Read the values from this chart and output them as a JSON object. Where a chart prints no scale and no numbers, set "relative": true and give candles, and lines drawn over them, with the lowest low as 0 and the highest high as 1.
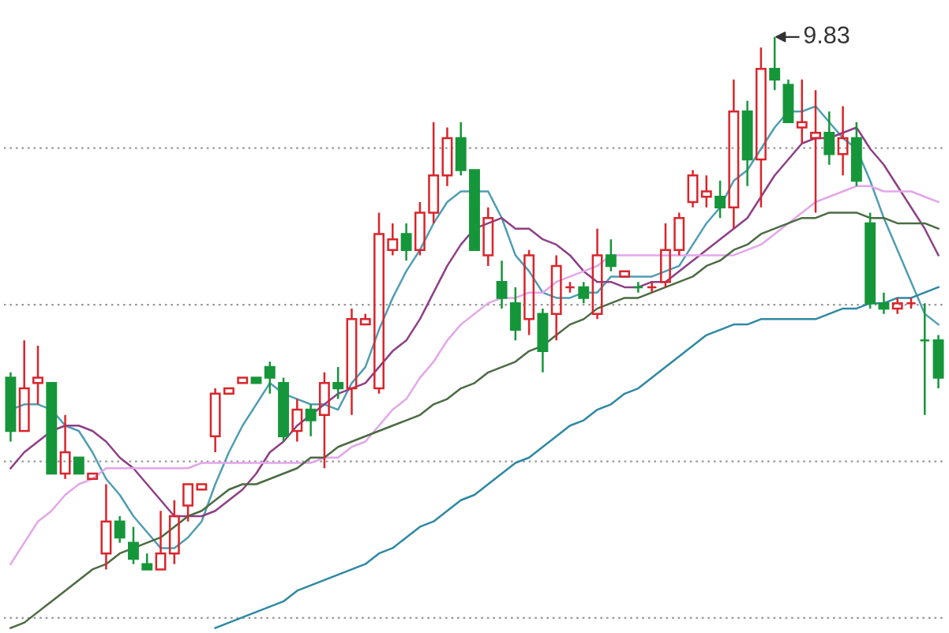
{
  "chart_data": {
    "type": "candlestick",
    "relative": true,
    "grid": "y",
    "categories": [
      null,
      null,
      null,
      null,
      null,
      null,
      null,
      null,
      null,
      null,
      null,
      null,
      null,
      null,
      null,
      null,
      null,
      null,
      null,
      null,
      null,
      null,
      null,
      null,
      null,
      null,
      null,
      null,
      null,
      null,
      null,
      null,
      null,
      null,
      null,
      null,
      null,
      null,
      null,
      null,
      null,
      null,
      null,
      null,
      null,
      null,
      null,
      null,
      null,
      null,
      null,
      null,
      null,
      null,
      null,
      null,
      null,
      null,
      null,
      null,
      null,
      null,
      null,
      null,
      null,
      null,
      null,
      null,
      null
    ],
    "ohlc": [
      [
        0.36,
        0.37,
        0.24,
        0.26
      ],
      [
        0.26,
        0.43,
        0.26,
        0.34
      ],
      [
        0.35,
        0.42,
        0.31,
        0.36
      ],
      [
        0.35,
        0.35,
        0.18,
        0.18
      ],
      [
        0.18,
        0.29,
        0.17,
        0.22
      ],
      [
        0.21,
        0.21,
        0.18,
        0.18
      ],
      [
        0.17,
        0.18,
        0.17,
        0.18
      ],
      [
        0.03,
        0.16,
        0,
        0.09
      ],
      [
        0.09,
        0.1,
        0.05,
        0.06
      ],
      [
        0.05,
        0.08,
        0.01,
        0.02
      ],
      [
        0.01,
        0.03,
        0,
        0
      ],
      [
        0,
        0.11,
        0,
        0.03
      ],
      [
        0.03,
        0.13,
        0.01,
        0.1
      ],
      [
        0.12,
        0.16,
        0.09,
        0.16
      ],
      [
        0.15,
        0.16,
        0.15,
        0.16
      ],
      [
        0.25,
        0.34,
        0.22,
        0.33
      ],
      [
        0.33,
        0.34,
        0.33,
        0.34
      ],
      [
        0.35,
        0.36,
        0.35,
        0.36
      ],
      [
        0.36,
        0.36,
        0.35,
        0.35
      ],
      [
        0.38,
        0.39,
        0.33,
        0.36
      ],
      [
        0.35,
        0.36,
        0.24,
        0.25
      ],
      [
        0.26,
        0.32,
        0.24,
        0.3
      ],
      [
        0.3,
        0.31,
        0.25,
        0.28
      ],
      [
        0.29,
        0.37,
        0.19,
        0.35
      ],
      [
        0.35,
        0.38,
        0.32,
        0.34
      ],
      [
        0.34,
        0.49,
        0.29,
        0.47
      ],
      [
        0.46,
        0.48,
        0.46,
        0.47
      ],
      [
        0.34,
        0.67,
        0.33,
        0.63
      ],
      [
        0.6,
        0.65,
        0.59,
        0.62
      ],
      [
        0.63,
        0.65,
        0.58,
        0.6
      ],
      [
        0.6,
        0.69,
        0.59,
        0.67
      ],
      [
        0.67,
        0.84,
        0.65,
        0.74
      ],
      [
        0.74,
        0.83,
        0.72,
        0.81
      ],
      [
        0.81,
        0.84,
        0.74,
        0.75
      ],
      [
        0.75,
        0.75,
        0.6,
        0.6
      ],
      [
        0.59,
        0.68,
        0.57,
        0.66
      ],
      [
        0.54,
        0.58,
        0.49,
        0.51
      ],
      [
        0.5,
        0.53,
        0.43,
        0.45
      ],
      [
        0.47,
        0.6,
        0.44,
        0.59
      ],
      [
        0.48,
        0.49,
        0.37,
        0.41
      ],
      [
        0.48,
        0.59,
        0.43,
        0.57
      ],
      [
        0.53,
        0.54,
        0.52,
        0.53
      ],
      [
        0.53,
        0.54,
        0.5,
        0.51
      ],
      [
        0.48,
        0.64,
        0.47,
        0.59
      ],
      [
        0.59,
        0.62,
        0.56,
        0.57
      ],
      [
        0.55,
        0.56,
        0.55,
        0.56
      ],
      [
        0.53,
        0.54,
        0.52,
        0.53
      ],
      [
        0.53,
        0.54,
        0.52,
        0.53
      ],
      [
        0.54,
        0.65,
        0.53,
        0.6
      ],
      [
        0.6,
        0.67,
        0.59,
        0.66
      ],
      [
        0.69,
        0.75,
        0.68,
        0.74
      ],
      [
        0.7,
        0.74,
        0.68,
        0.71
      ],
      [
        0.7,
        0.73,
        0.66,
        0.68
      ],
      [
        0.68,
        0.92,
        0.64,
        0.86
      ],
      [
        0.86,
        0.88,
        0.72,
        0.77
      ],
      [
        0.77,
        0.98,
        0.68,
        0.94
      ],
      [
        0.94,
        1,
        0.9,
        0.92
      ],
      [
        0.91,
        0.92,
        0.84,
        0.84
      ],
      [
        0.83,
        0.92,
        0.8,
        0.84
      ],
      [
        0.81,
        0.9,
        0.67,
        0.82
      ],
      [
        0.82,
        0.86,
        0.76,
        0.78
      ],
      [
        0.78,
        0.87,
        0.74,
        0.81
      ],
      [
        0.81,
        0.84,
        0.72,
        0.73
      ],
      [
        0.65,
        0.67,
        0.49,
        0.5
      ],
      [
        0.5,
        0.52,
        0.48,
        0.49
      ],
      [
        0.49,
        0.51,
        0.48,
        0.5
      ],
      [
        0.5,
        0.51,
        0.49,
        0.5
      ],
      [
        0.43,
        0.5,
        0.29,
        0.43
      ],
      [
        0.43,
        0.44,
        0.34,
        0.36
      ]
    ],
    "colors": [
      "#16963a",
      "#d9252b",
      "#d9252b",
      "#16963a",
      "#d9252b",
      "#16963a",
      "#d9252b",
      "#d9252b",
      "#16963a",
      "#16963a",
      "#16963a",
      "#d9252b",
      "#d9252b",
      "#d9252b",
      "#d9252b",
      "#d9252b",
      "#d9252b",
      "#d9252b",
      "#16963a",
      "#16963a",
      "#16963a",
      "#d9252b",
      "#16963a",
      "#d9252b",
      "#16963a",
      "#d9252b",
      "#d9252b",
      "#d9252b",
      "#d9252b",
      "#16963a",
      "#d9252b",
      "#d9252b",
      "#d9252b",
      "#16963a",
      "#16963a",
      "#d9252b",
      "#16963a",
      "#16963a",
      "#d9252b",
      "#16963a",
      "#d9252b",
      "#d9252b",
      "#16963a",
      "#d9252b",
      "#16963a",
      "#d9252b",
      "#16963a",
      "#d9252b",
      "#d9252b",
      "#d9252b",
      "#d9252b",
      "#d9252b",
      "#16963a",
      "#d9252b",
      "#16963a",
      "#d9252b",
      "#16963a",
      "#16963a",
      "#d9252b",
      "#d9252b",
      "#16963a",
      "#d9252b",
      "#16963a",
      "#16963a",
      "#16963a",
      "#d9252b",
      "#d9252b",
      "#16963a",
      "#16963a"
    ],
    "series": [
      {
        "type": "line",
        "color": "#4f9db3",
        "values": [
          0.3,
          0.31,
          0.31,
          0.3,
          0.27,
          0.26,
          0.22,
          0.17,
          0.14,
          0.1,
          0.07,
          0.04,
          0.04,
          0.06,
          0.09,
          0.16,
          0.22,
          0.27,
          0.31,
          0.35,
          0.33,
          0.32,
          0.31,
          0.31,
          0.3,
          0.35,
          0.38,
          0.45,
          0.51,
          0.56,
          0.6,
          0.65,
          0.69,
          0.71,
          0.71,
          0.71,
          0.66,
          0.59,
          0.56,
          0.52,
          0.51,
          0.51,
          0.52,
          0.52,
          0.55,
          0.55,
          0.55,
          0.55,
          0.56,
          0.57,
          0.61,
          0.65,
          0.68,
          0.73,
          0.75,
          0.79,
          0.83,
          0.86,
          0.86,
          0.87,
          0.84,
          0.81,
          0.79,
          0.73,
          0.66,
          0.6,
          0.54,
          0.48,
          0.46
        ]
      },
      {
        "type": "line",
        "color": "#8e3f86",
        "values": [
          0.19,
          0.22,
          0.24,
          0.26,
          0.27,
          0.27,
          0.26,
          0.24,
          0.21,
          0.19,
          0.16,
          0.13,
          0.1,
          0.1,
          0.1,
          0.11,
          0.13,
          0.15,
          0.18,
          0.22,
          0.24,
          0.27,
          0.29,
          0.31,
          0.33,
          0.34,
          0.35,
          0.38,
          0.41,
          0.43,
          0.47,
          0.52,
          0.57,
          0.61,
          0.64,
          0.65,
          0.66,
          0.64,
          0.64,
          0.62,
          0.61,
          0.59,
          0.56,
          0.54,
          0.54,
          0.53,
          0.53,
          0.54,
          0.54,
          0.56,
          0.58,
          0.6,
          0.62,
          0.64,
          0.66,
          0.7,
          0.74,
          0.77,
          0.8,
          0.81,
          0.81,
          0.82,
          0.83,
          0.79,
          0.76,
          0.72,
          0.68,
          0.64,
          0.59
        ]
      },
      {
        "type": "line",
        "color": "#e3a6ea",
        "values": [
          0.01,
          0.05,
          0.09,
          0.11,
          0.14,
          0.16,
          0.17,
          0.19,
          0.19,
          0.19,
          0.19,
          0.19,
          0.19,
          0.19,
          0.2,
          0.2,
          0.2,
          0.2,
          0.2,
          0.2,
          0.2,
          0.2,
          0.2,
          0.21,
          0.21,
          0.23,
          0.24,
          0.27,
          0.3,
          0.32,
          0.36,
          0.39,
          0.43,
          0.46,
          0.48,
          0.5,
          0.51,
          0.51,
          0.52,
          0.52,
          0.54,
          0.55,
          0.56,
          0.57,
          0.59,
          0.59,
          0.59,
          0.59,
          0.59,
          0.59,
          0.59,
          0.59,
          0.59,
          0.59,
          0.6,
          0.61,
          0.63,
          0.65,
          0.67,
          0.69,
          0.7,
          0.71,
          0.72,
          0.72,
          0.71,
          0.71,
          0.71,
          0.7,
          0.69
        ]
      },
      {
        "type": "line",
        "color": "#4a6b42",
        "values": [
          -0.11,
          -0.1,
          -0.08,
          -0.06,
          -0.04,
          -0.02,
          0,
          0.01,
          0.03,
          0.04,
          0.05,
          0.06,
          0.08,
          0.1,
          0.11,
          0.13,
          0.15,
          0.16,
          0.16,
          0.17,
          0.18,
          0.19,
          0.21,
          0.21,
          0.23,
          0.24,
          0.25,
          0.26,
          0.27,
          0.28,
          0.29,
          0.31,
          0.32,
          0.34,
          0.35,
          0.37,
          0.38,
          0.39,
          0.41,
          0.42,
          0.44,
          0.46,
          0.47,
          0.49,
          0.5,
          0.51,
          0.51,
          0.52,
          0.53,
          0.54,
          0.55,
          0.57,
          0.58,
          0.6,
          0.61,
          0.63,
          0.64,
          0.65,
          0.66,
          0.66,
          0.67,
          0.67,
          0.67,
          0.66,
          0.66,
          0.65,
          0.65,
          0.65,
          0.64
        ]
      },
      {
        "type": "line",
        "color": "#2f88a3",
        "values": [
          null,
          null,
          null,
          null,
          null,
          null,
          null,
          null,
          null,
          null,
          null,
          null,
          null,
          null,
          null,
          -0.11,
          -0.1,
          -0.09,
          -0.08,
          -0.07,
          -0.06,
          -0.04,
          -0.03,
          -0.02,
          -0.01,
          0,
          0.01,
          0.03,
          0.04,
          0.06,
          0.08,
          0.09,
          0.11,
          0.13,
          0.14,
          0.16,
          0.18,
          0.2,
          0.21,
          0.23,
          0.25,
          0.27,
          0.28,
          0.3,
          0.31,
          0.33,
          0.34,
          0.36,
          0.38,
          0.4,
          0.42,
          0.44,
          0.45,
          0.46,
          0.46,
          0.47,
          0.47,
          0.47,
          0.47,
          0.47,
          0.48,
          0.49,
          0.49,
          0.5,
          0.5,
          0.51,
          0.51,
          0.52,
          0.53
        ]
      }
    ],
    "annotations": [
      "9.83"
    ]
  }
}
